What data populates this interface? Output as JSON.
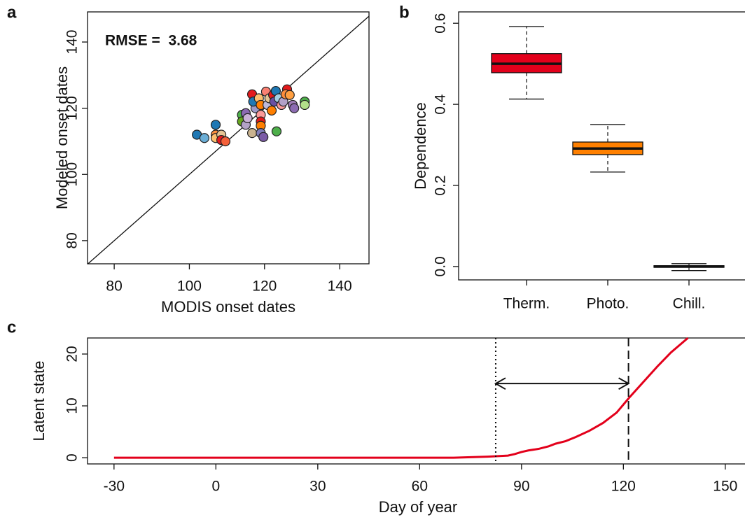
{
  "chart_data": [
    {
      "type": "scatter",
      "panel_label": "a",
      "annotation": "RMSE =  3.68",
      "xlabel": "MODIS onset dates",
      "ylabel": "Modeled onset dates",
      "xlim": [
        72.9,
        147.8
      ],
      "ylim": [
        73,
        149.1
      ],
      "xticks": [
        80,
        100,
        120,
        140
      ],
      "yticks": [
        80,
        100,
        120,
        140
      ],
      "x": [
        102,
        104,
        107,
        107,
        107,
        108.5,
        108.5,
        109.6,
        114,
        115,
        114,
        115,
        115.5,
        116.7,
        117.6,
        116.7,
        117,
        118.5,
        119,
        119,
        119,
        119,
        119,
        119.7,
        120.4,
        120.8,
        121.3,
        121.9,
        122.3,
        122.6,
        123,
        123.2,
        123.8,
        124.5,
        125,
        126,
        125.6,
        126.7,
        127.5,
        127.9,
        130.7,
        130.7
      ],
      "y": [
        112,
        111,
        115,
        112,
        111,
        112,
        110.4,
        110,
        118,
        118.5,
        116,
        115,
        117,
        112.5,
        120,
        124.2,
        122,
        123,
        121,
        118,
        116,
        114.7,
        112.5,
        111.3,
        125,
        121,
        123,
        119.3,
        124,
        122,
        125.2,
        113,
        123,
        121,
        122,
        125.7,
        124.2,
        124,
        121,
        120,
        122,
        121
      ],
      "colors": [
        "#1f78b4",
        "#6baed6",
        "#1f78b4",
        "#fd8d3c",
        "#fdbf6f",
        "#e5c494",
        "#e31a1c",
        "#f4603a",
        "#4daf4a",
        "#8c6bb1",
        "#66a61e",
        "#b3a2c7",
        "#cab2d6",
        "#c9b38f",
        "#9e9ac8",
        "#e31a1c",
        "#1f78b4",
        "#fdbf6f",
        "#ff7f00",
        "#fb9a99",
        "#e31a1c",
        "#ff7f00",
        "#807dba",
        "#7b5ba6",
        "#fb8072",
        "#bebada",
        "#e5c494",
        "#ff7f00",
        "#e31a1c",
        "#6a51a3",
        "#1f78b4",
        "#4daf4a",
        "#a6cee3",
        "#fb9a99",
        "#b2a1c7",
        "#e31a1c",
        "#fd8d3c",
        "#ff9f40",
        "#9e7bb5",
        "#8c6bb1",
        "#4daf4a",
        "#b2df8a"
      ]
    },
    {
      "type": "box",
      "panel_label": "b",
      "ylabel": "Dependence",
      "categories": [
        "Therm.",
        "Photo.",
        "Chill."
      ],
      "ylim": [
        -0.033,
        0.628
      ],
      "yticks": [
        {
          "value": 0,
          "label": "0.0"
        },
        0.2,
        0.4,
        0.6
      ],
      "colors": [
        "#e3001b",
        "#ff8000",
        "#111111"
      ],
      "boxes": [
        {
          "low": 0.413,
          "q1": 0.478,
          "median": 0.5,
          "q3": 0.525,
          "high": 0.592
        },
        {
          "low": 0.233,
          "q1": 0.276,
          "median": 0.291,
          "q3": 0.307,
          "high": 0.35
        },
        {
          "low": -0.01,
          "q1": -0.002,
          "median": 0,
          "q3": 0.002,
          "high": 0.007
        }
      ]
    },
    {
      "type": "line",
      "panel_label": "c",
      "xlabel": "Day of year",
      "ylabel": "Latent state",
      "xlim": [
        -37.8,
        160
      ],
      "ylim": [
        -1.2,
        23.1
      ],
      "xticks": [
        -30,
        0,
        30,
        60,
        90,
        120,
        150
      ],
      "yticks": [
        0,
        10,
        20
      ],
      "color": "#e3001b",
      "x": [
        -30,
        -20,
        -10,
        0,
        10,
        20,
        30,
        40,
        50,
        60,
        70,
        75,
        80,
        83,
        86,
        88,
        90,
        92,
        95,
        98,
        100,
        103,
        106,
        110,
        114,
        118,
        122,
        126,
        130,
        134,
        139
      ],
      "values": [
        0,
        0,
        0,
        0,
        0,
        0,
        0,
        0,
        0,
        0,
        0,
        0.1,
        0.2,
        0.3,
        0.4,
        0.7,
        1.1,
        1.4,
        1.7,
        2.2,
        2.7,
        3.2,
        4.0,
        5.2,
        6.7,
        8.7,
        11.8,
        14.7,
        17.6,
        20.3,
        23.1
      ],
      "vlines": [
        {
          "x": 82.4,
          "style": "dotted"
        },
        {
          "x": 121.5,
          "style": "dashed"
        }
      ],
      "arrow": {
        "x": [
          82.4,
          121.5
        ],
        "y": 14.3
      }
    }
  ]
}
